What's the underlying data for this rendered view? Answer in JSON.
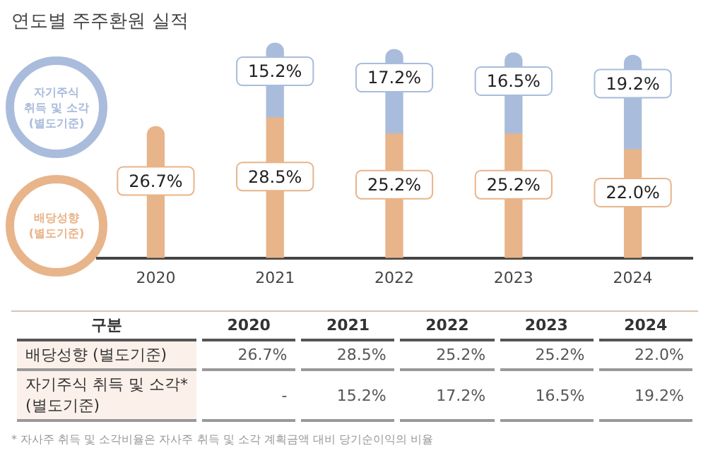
{
  "chart_data": {
    "type": "bar",
    "stacked": true,
    "title": "연도별 주주환원 실적",
    "categories": [
      "2020",
      "2021",
      "2022",
      "2023",
      "2024"
    ],
    "series": [
      {
        "name": "배당성향\n(별도기준)",
        "color": "#e8b48a",
        "values": [
          26.7,
          28.5,
          25.2,
          25.2,
          22.0
        ],
        "value_labels": [
          "26.7%",
          "28.5%",
          "25.2%",
          "25.2%",
          "22.0%"
        ]
      },
      {
        "name": "자기주식\n취득 및 소각\n(별도기준)",
        "color": "#a9bcdc",
        "values": [
          null,
          15.2,
          17.2,
          16.5,
          19.2
        ],
        "value_labels": [
          "-",
          "15.2%",
          "17.2%",
          "16.5%",
          "19.2%"
        ]
      }
    ],
    "data_labels": true,
    "legend": "left",
    "grid": false,
    "annotations": [
      "구분",
      "배당성향 (별도기준)",
      "자기주식 취득 및 소각*\n(별도기준)",
      "* 자사주 취득 및 소각비율은 자사주 취득 및 소각 계획금액 대비 당기순이익의 비율"
    ]
  }
}
